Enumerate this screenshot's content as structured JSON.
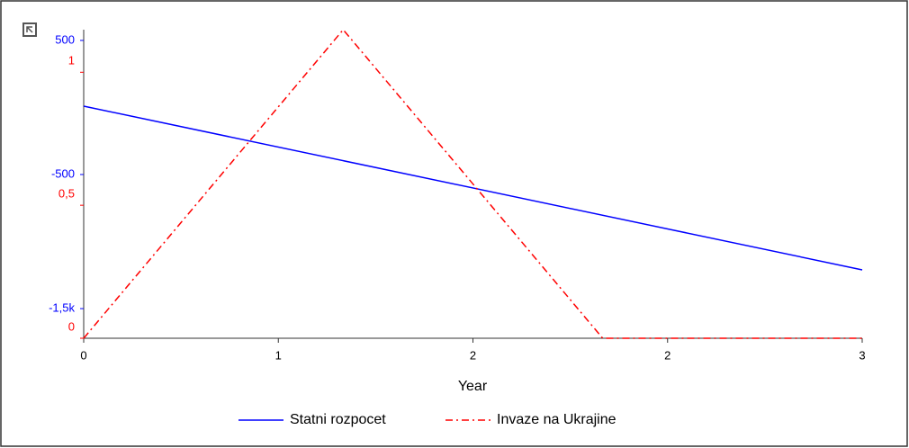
{
  "chart_data": {
    "type": "line",
    "x_label": "Year",
    "xlim": [
      0,
      3
    ],
    "xticks": [
      0,
      {
        "value": 0.75,
        "label": "1"
      },
      {
        "value": 1.5,
        "label": "2"
      },
      {
        "value": 2.25,
        "label": "2"
      },
      3
    ],
    "ylim": [
      -1721,
      580
    ],
    "yticks": [
      {
        "value": -1500,
        "label": "-1,5k"
      },
      -500,
      500
    ],
    "y2lim": [
      0,
      1.16
    ],
    "y2ticks": [
      0,
      {
        "value": 0.5,
        "label": "0,5"
      },
      1
    ],
    "legend": "bottom",
    "series": [
      {
        "name": "Statni rozpocet",
        "color": "#0000ff",
        "dash": "solid",
        "x": [
          0,
          3
        ],
        "values": [
          10,
          -1211
        ]
      },
      {
        "name": "Invaze na Ukrajine",
        "color": "#ff0000",
        "dash": "dashdot",
        "axis": "y2",
        "x": [
          0,
          1,
          2,
          3
        ],
        "values": [
          0,
          1.16,
          0,
          0
        ]
      }
    ]
  }
}
